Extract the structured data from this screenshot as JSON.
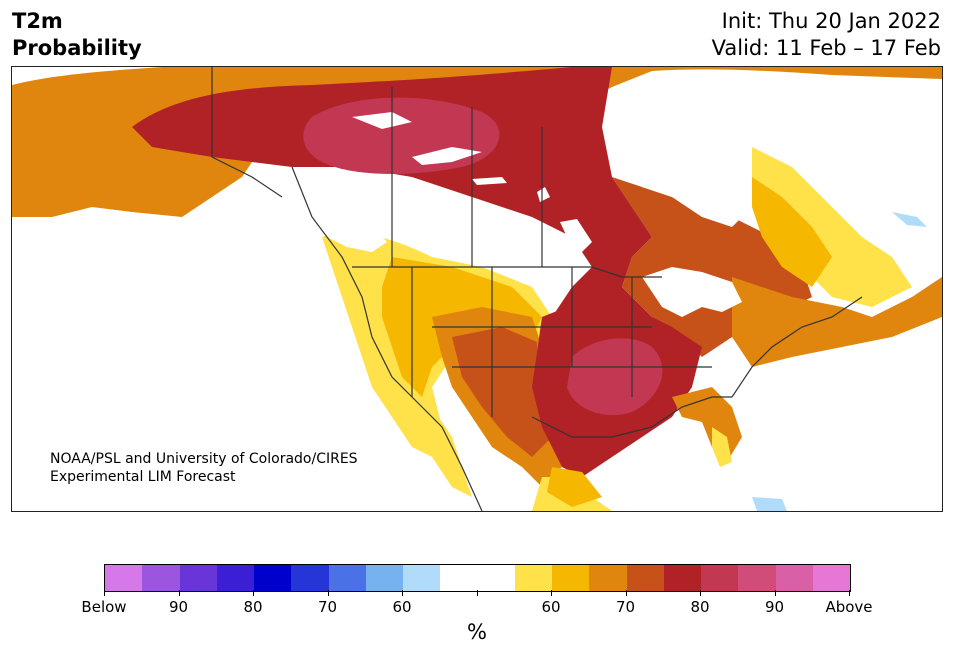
{
  "title": {
    "left_line1": "T2m",
    "left_line2": "Probability",
    "right_line1": "Init: Thu 20 Jan 2022",
    "right_line2": "Valid: 11 Feb – 17 Feb"
  },
  "credit": {
    "line1": "NOAA/PSL and University of Colorado/CIRES",
    "line2": "Experimental LIM Forecast"
  },
  "colorbar": {
    "unit": "%",
    "colors": [
      "#d678ea",
      "#9b55df",
      "#6a35d8",
      "#3a1fd5",
      "#0000cc",
      "#2535d8",
      "#4a72e6",
      "#77b2f0",
      "#b0dcfa",
      "#ffffff",
      "#ffffff",
      "#ffe14a",
      "#f5b700",
      "#e0860f",
      "#c6521a",
      "#b02226",
      "#c23752",
      "#d04c79",
      "#d95fa6",
      "#e677d6"
    ],
    "labels": [
      "Below",
      "90",
      "80",
      "70",
      "60",
      "",
      "60",
      "70",
      "80",
      "90",
      "Above"
    ]
  },
  "map_colors": {
    "land": "#ffffff",
    "c50": "#ffe14a",
    "c60": "#f5b700",
    "c65": "#e0860f",
    "c70": "#c6521a",
    "c80": "#b02226",
    "c90": "#c23752",
    "blue": "#b0dcfa",
    "border": "#333333"
  }
}
